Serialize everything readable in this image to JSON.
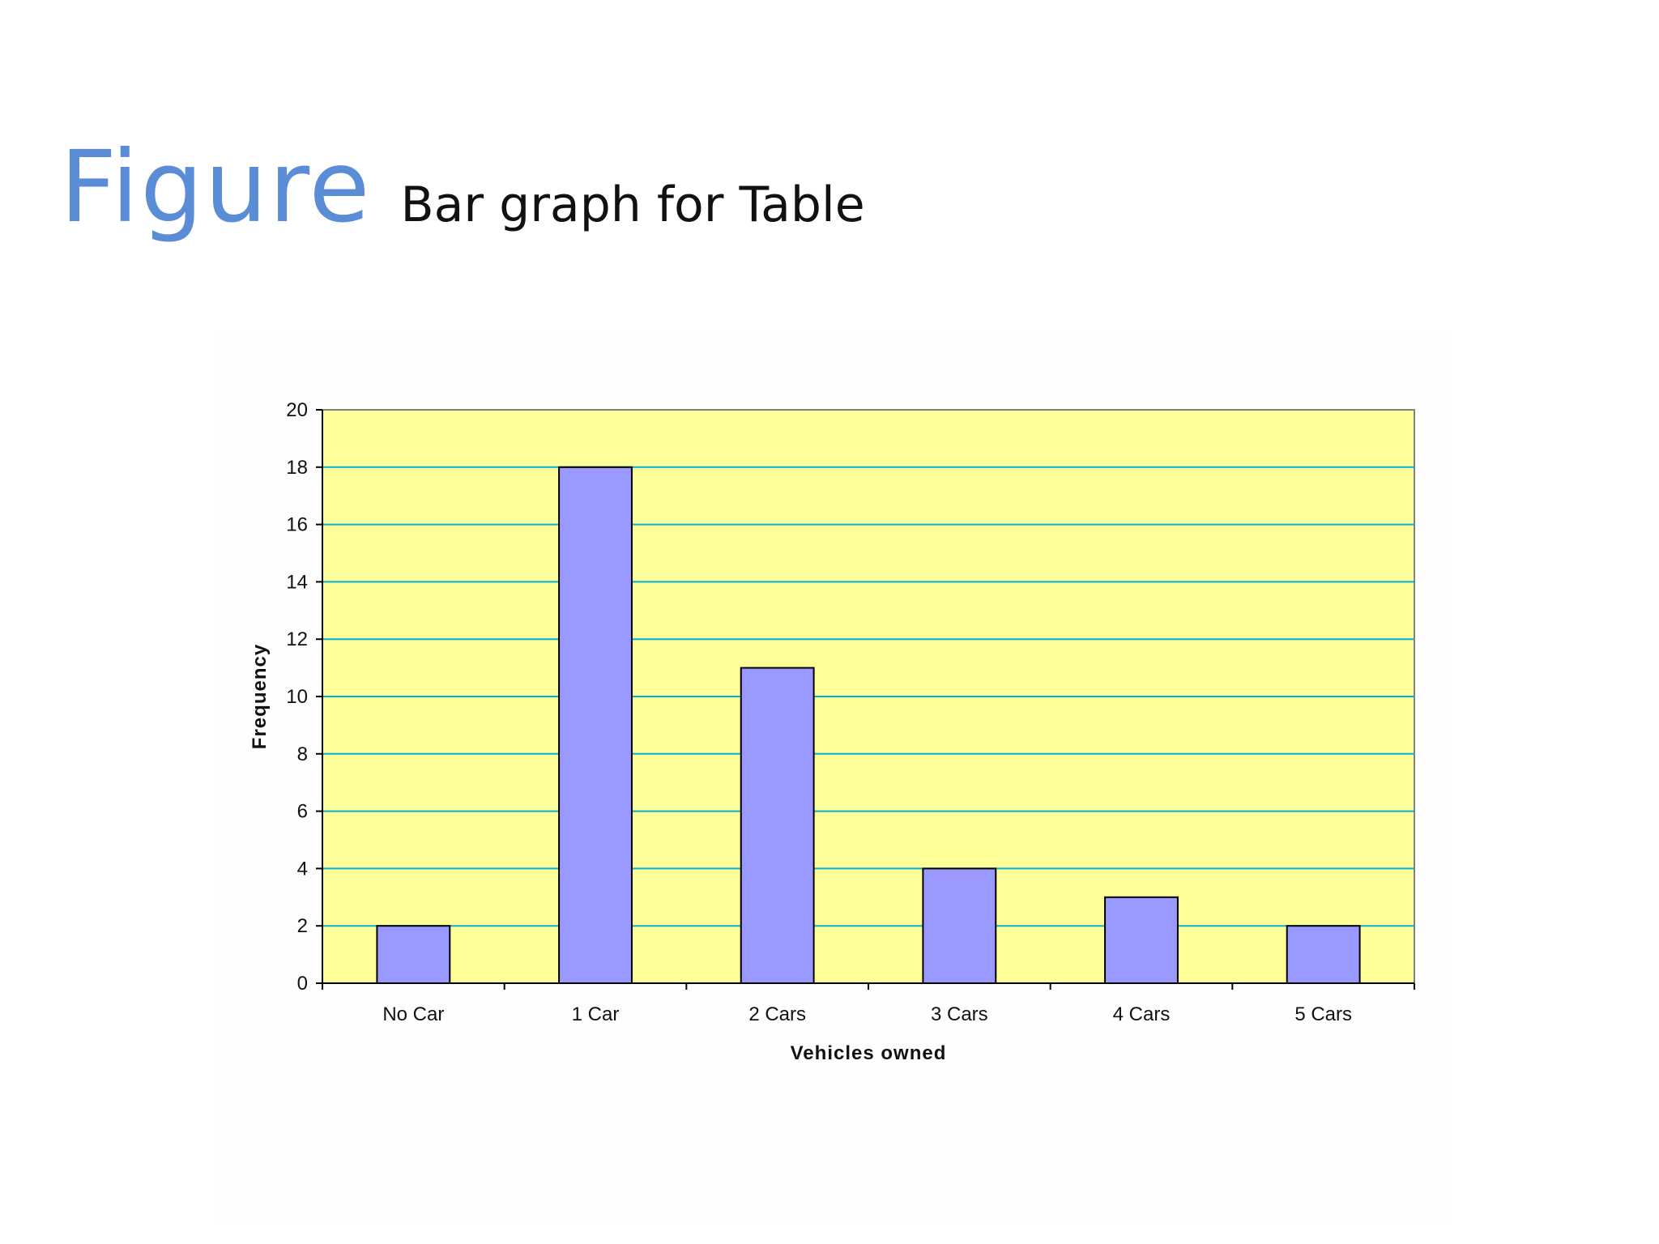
{
  "slide": {
    "title": "Figure",
    "subtitle": "Bar graph for Table"
  },
  "colors": {
    "title": "#5b8dd6",
    "plot_background": "#ffff99",
    "bar_fill": "#9999ff",
    "bar_stroke": "#000000",
    "gridline": "#00b3d9",
    "axis": "#808080"
  },
  "chart_data": {
    "type": "bar",
    "categories": [
      "No Car",
      "1 Car",
      "2 Cars",
      "3 Cars",
      "4 Cars",
      "5 Cars"
    ],
    "values": [
      2,
      18,
      11,
      4,
      3,
      2
    ],
    "title": "",
    "xlabel": "Vehicles owned",
    "ylabel": "Frequency",
    "ylim": [
      0,
      20
    ],
    "yticks": [
      0,
      2,
      4,
      6,
      8,
      10,
      12,
      14,
      16,
      18,
      20
    ],
    "grid": true,
    "legend": "none"
  }
}
